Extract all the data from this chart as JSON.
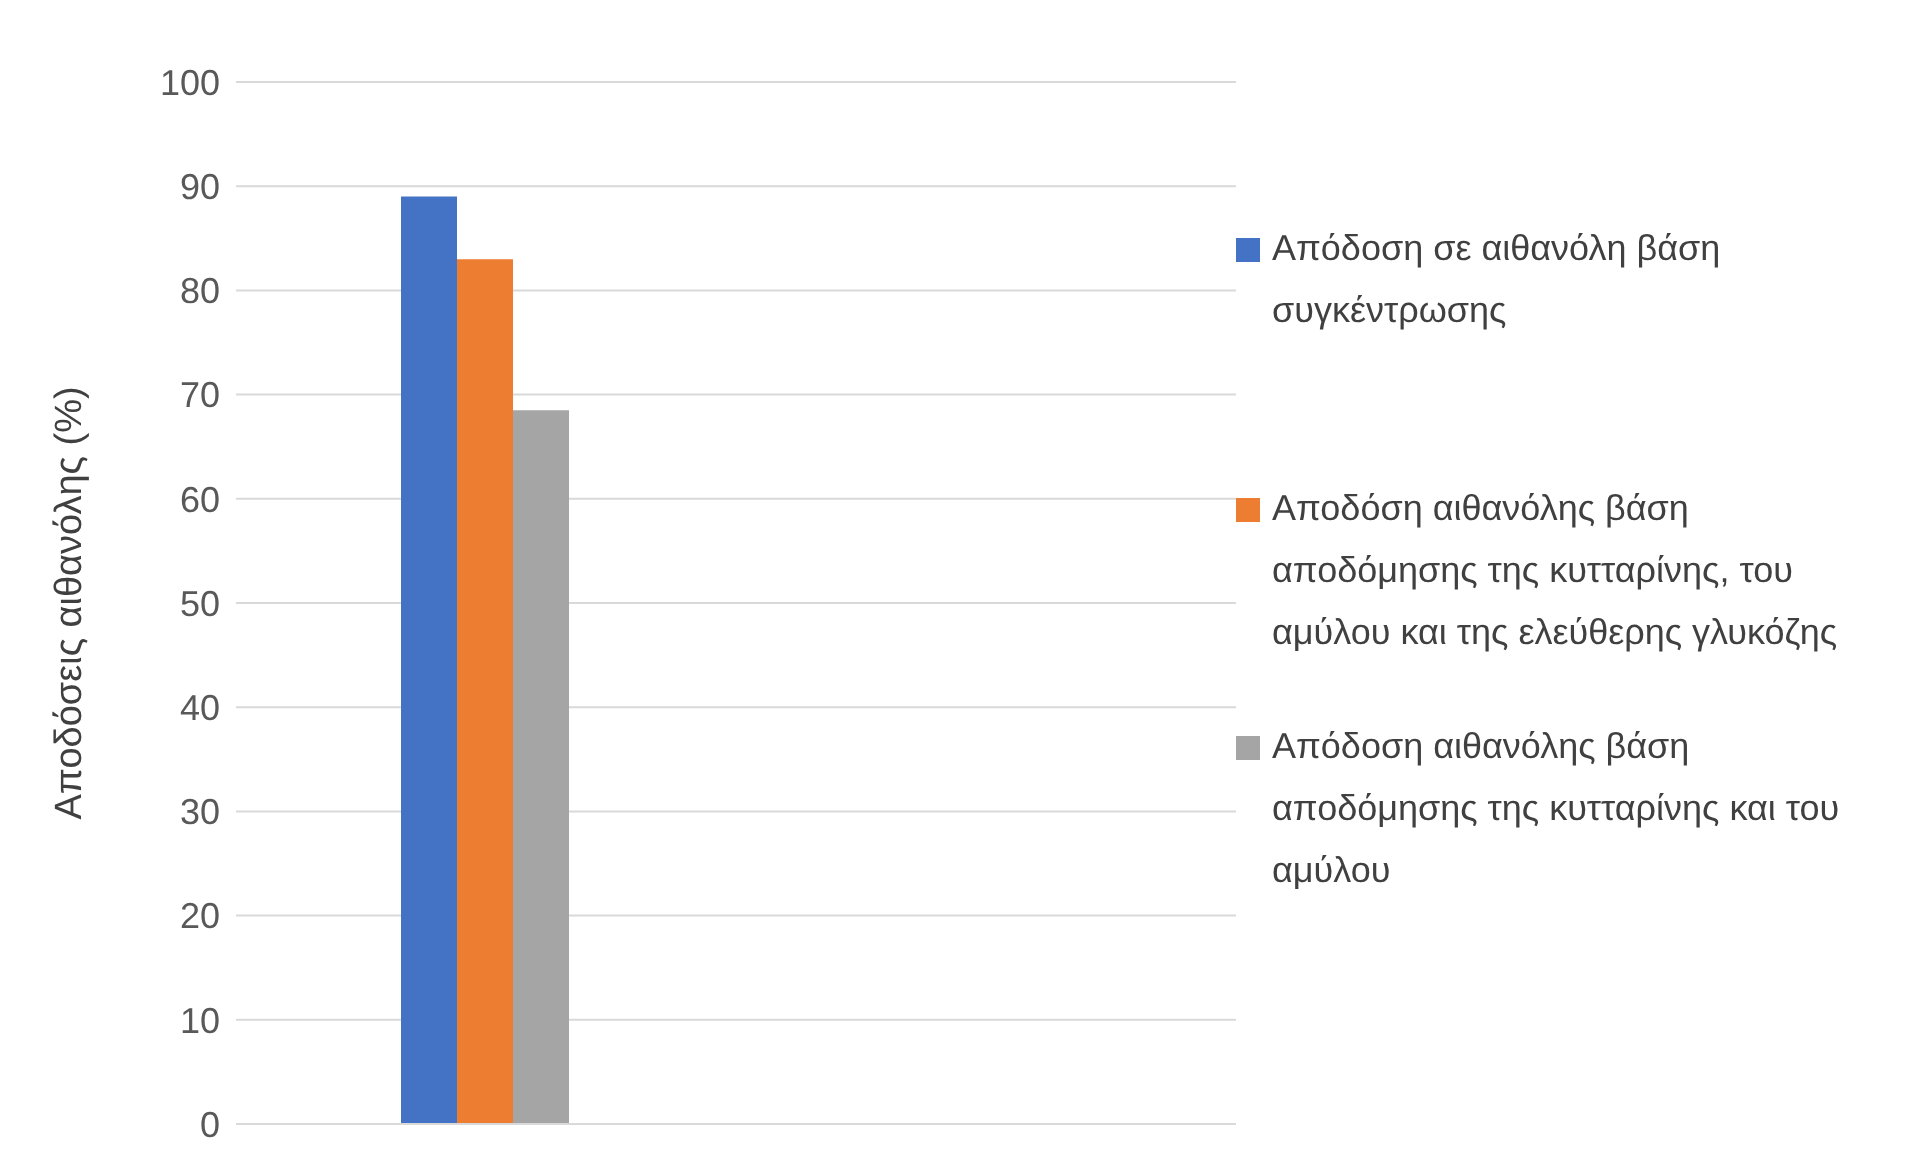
{
  "chart_data": {
    "type": "bar",
    "ylabel": "Αποδόσεις αιθανόλης (%)",
    "categories": [
      null,
      null
    ],
    "series": [
      {
        "name": "Απόδοση σε αιθανόλη βάση συγκέντρωσης",
        "color": "#4472c4",
        "values": [
          89,
          null
        ]
      },
      {
        "name": "Αποδόση αιθανόλης βάση αποδόμησης της κυτταρίνης, του αμύλου και της ελεύθερης γλυκόζης",
        "color": "#ed7d31",
        "values": [
          83,
          null
        ]
      },
      {
        "name": "Απόδοση αιθανόλης βάση αποδόμησης της κυτταρίνης και του αμύλου",
        "color": "#a5a5a5",
        "values": [
          68.5,
          null
        ]
      }
    ],
    "ylim": [
      0,
      100
    ],
    "yticks": [
      0,
      10,
      20,
      30,
      40,
      50,
      60,
      70,
      80,
      90,
      100
    ],
    "grid": "y",
    "legend": "right",
    "tick_labels": "y"
  }
}
